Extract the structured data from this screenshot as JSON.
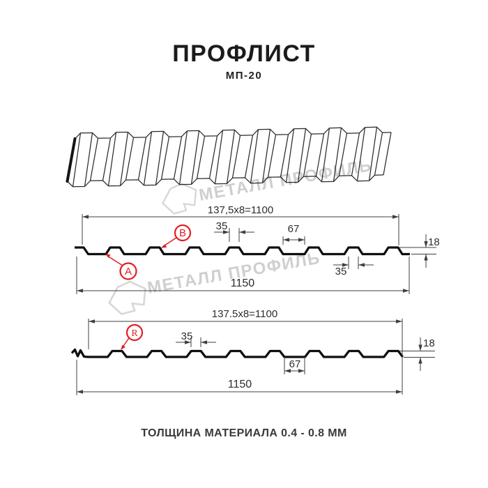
{
  "header": {
    "title": "ПРОФЛИСТ",
    "subtitle": "МП-20"
  },
  "footer": {
    "thickness_note": "ТОЛЩИНА МАТЕРИАЛА 0.4 - 0.8 ММ"
  },
  "watermark": {
    "brand_text": "МЕТАЛЛ ПРОФИЛЬ"
  },
  "colors": {
    "accent_red": "#e31e24",
    "drawing_line": "#0f0f0f",
    "dimension_line": "#3f3f3f",
    "watermark_gray": "#cbcbcb"
  },
  "section_ab": {
    "coverage_width": "137,5x8=1100",
    "rib_top_width": "35",
    "valley_width": "67",
    "profile_height": "18",
    "rib_bottom_width": "35",
    "overall_width": "1150",
    "callout_a": "A",
    "callout_b": "B"
  },
  "section_r": {
    "coverage_width": "137.5x8=1100",
    "rib_top_width": "35",
    "valley_width": "67",
    "profile_height": "18",
    "overall_width": "1150",
    "callout_r": "R"
  }
}
